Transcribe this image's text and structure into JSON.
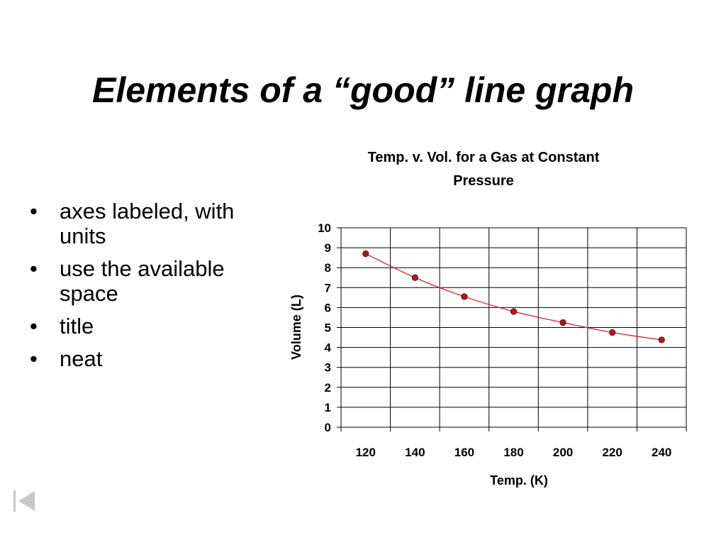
{
  "slide": {
    "title": "Elements of a “good” line graph",
    "bullet_marker": "•",
    "bullets": [
      "axes labeled, with units",
      "use the available space",
      "title",
      "neat"
    ]
  },
  "chart_data": {
    "type": "scatter",
    "title_lines": [
      "Temp. v. Vol. for a Gas at Constant",
      "Pressure"
    ],
    "xlabel": "Temp. (K)",
    "ylabel": "Volume (L)",
    "xlim": [
      110,
      250
    ],
    "ylim": [
      0,
      10
    ],
    "x_ticks": [
      120,
      140,
      160,
      180,
      200,
      220,
      240
    ],
    "y_ticks": [
      0,
      1,
      2,
      3,
      4,
      5,
      6,
      7,
      8,
      9,
      10
    ],
    "grid": true,
    "legend": "none",
    "series": [
      {
        "x": [
          120,
          140,
          160,
          180,
          200,
          220,
          240
        ],
        "y": [
          8.7,
          7.5,
          6.55,
          5.8,
          5.25,
          4.75,
          4.38
        ],
        "marker_color": "#b01818",
        "line_color": "#e02020"
      }
    ]
  },
  "nav": {
    "back_icon": "first-slide-icon"
  }
}
